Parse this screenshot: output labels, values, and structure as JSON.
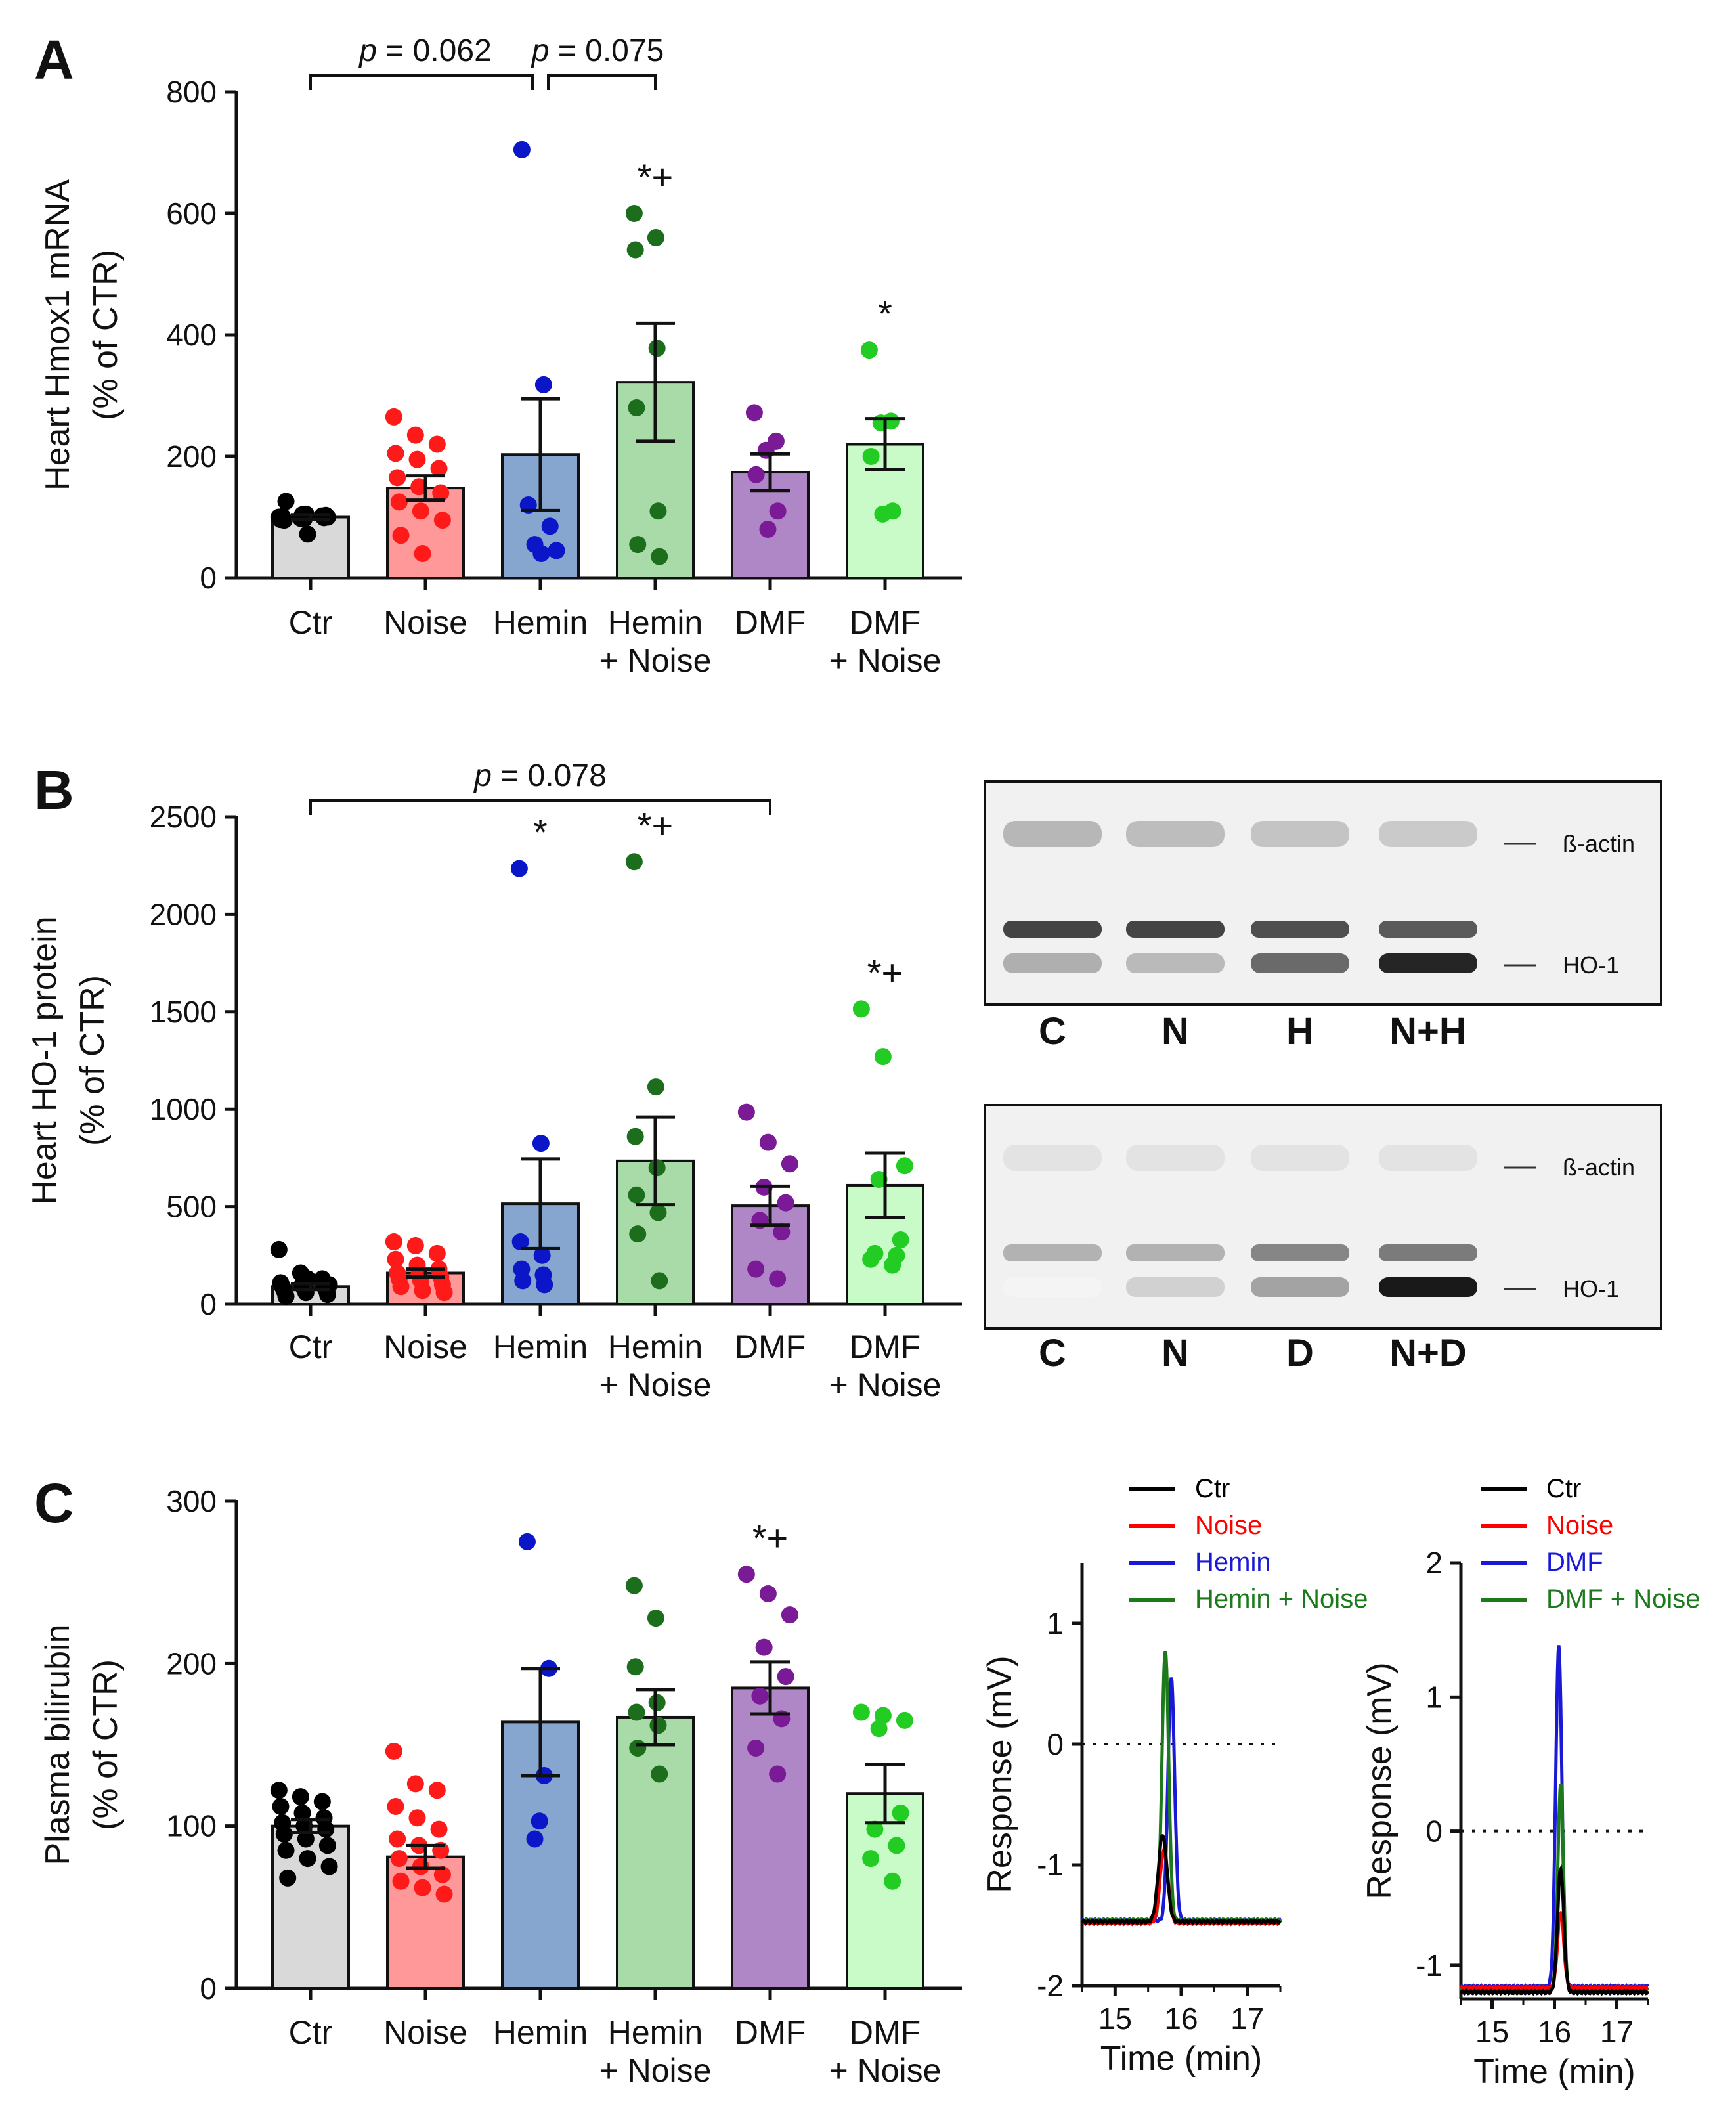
{
  "panels": {
    "a": "A",
    "b": "B",
    "c": "C"
  },
  "colors": {
    "ctr": "#000000",
    "noise": "#ff1a1a",
    "hemin": "#0a16c8",
    "hemin_noise": "#1c6e1c",
    "dmf": "#7a1a96",
    "dmf_noise": "#22cc22",
    "bar_ctr": "#d9d9d9",
    "bar_noise": "#ff9999",
    "bar_hemin": "#86a6cf",
    "bar_hemin_noise": "#a9dba9",
    "bar_dmf": "#b087c6",
    "bar_dmf_noise": "#c9fbc9"
  },
  "chart_data": [
    {
      "id": "A",
      "type": "bar",
      "ylabel_line1": "Heart Hmox1 mRNA",
      "ylabel_line2": "(% of CTR)",
      "ylim": [
        0,
        800
      ],
      "yticks": [
        "0",
        "200",
        "400",
        "600",
        "800"
      ],
      "categories": [
        [
          "Ctr"
        ],
        [
          "Noise"
        ],
        [
          "Hemin"
        ],
        [
          "Hemin",
          "+ Noise"
        ],
        [
          "DMF"
        ],
        [
          "DMF",
          "+ Noise"
        ]
      ],
      "means": [
        100,
        148,
        203,
        322,
        174,
        220
      ],
      "sems": [
        4,
        20,
        92,
        97,
        30,
        42
      ],
      "points": [
        [
          100,
          98,
          102,
          96,
          104,
          99,
          101,
          97,
          103,
          95,
          105,
          100,
          126,
          72
        ],
        [
          265,
          235,
          220,
          205,
          195,
          180,
          165,
          150,
          140,
          125,
          110,
          95,
          70,
          40
        ],
        [
          705,
          318,
          120,
          85,
          55,
          45,
          40
        ],
        [
          600,
          560,
          540,
          378,
          280,
          110,
          55,
          35
        ],
        [
          272,
          225,
          210,
          170,
          110,
          80
        ],
        [
          375,
          258,
          255,
          200,
          110,
          105
        ]
      ],
      "significance": [
        "",
        "",
        "",
        "*+",
        "",
        "*"
      ],
      "comparisons": [
        {
          "label_p": "p",
          "label_rest": " = 0.062",
          "from": 0,
          "to": 2
        },
        {
          "label_p": "p",
          "label_rest": " = 0.075",
          "from": 2,
          "to": 3
        }
      ]
    },
    {
      "id": "B",
      "type": "bar",
      "ylabel_line1": "Heart HO-1 protein",
      "ylabel_line2": "(% of CTR)",
      "ylim": [
        0,
        2500
      ],
      "yticks": [
        "0",
        "500",
        "1000",
        "1500",
        "2000",
        "2500"
      ],
      "categories": [
        [
          "Ctr"
        ],
        [
          "Noise"
        ],
        [
          "Hemin"
        ],
        [
          "Hemin",
          "+ Noise"
        ],
        [
          "DMF"
        ],
        [
          "DMF",
          "+ Noise"
        ]
      ],
      "means": [
        90,
        160,
        515,
        735,
        505,
        610
      ],
      "sems": [
        15,
        20,
        230,
        225,
        100,
        165
      ],
      "points": [
        [
          280,
          160,
          130,
          110,
          100,
          95,
          90,
          80,
          75,
          70,
          60,
          50,
          40,
          130,
          100
        ],
        [
          320,
          300,
          260,
          230,
          200,
          180,
          160,
          150,
          140,
          130,
          120,
          100,
          90,
          70,
          60
        ],
        [
          2235,
          825,
          320,
          250,
          180,
          150,
          120,
          100
        ],
        [
          2270,
          1115,
          860,
          700,
          560,
          470,
          360,
          120
        ],
        [
          985,
          830,
          720,
          600,
          520,
          430,
          370,
          180,
          130
        ],
        [
          1515,
          1270,
          710,
          640,
          330,
          260,
          250,
          230,
          200
        ]
      ],
      "significance": [
        "",
        "",
        "*",
        "*+",
        "",
        "*+"
      ],
      "comparisons": [
        {
          "label_p": "p",
          "label_rest": " = 0.078",
          "from": 0,
          "to": 4
        }
      ]
    },
    {
      "id": "C",
      "type": "bar",
      "ylabel_line1": "Plasma bilirubin",
      "ylabel_line2": "(% of CTR)",
      "ylim": [
        0,
        300
      ],
      "yticks": [
        "0",
        "100",
        "200",
        "300"
      ],
      "categories": [
        [
          "Ctr"
        ],
        [
          "Noise"
        ],
        [
          "Hemin"
        ],
        [
          "Hemin",
          "+ Noise"
        ],
        [
          "DMF"
        ],
        [
          "DMF",
          "+ Noise"
        ]
      ],
      "means": [
        100,
        81,
        164,
        167,
        185,
        120
      ],
      "sems": [
        4,
        7,
        33,
        17,
        16,
        18
      ],
      "points": [
        [
          122,
          118,
          115,
          112,
          108,
          105,
          102,
          100,
          98,
          95,
          92,
          88,
          85,
          80,
          75,
          68
        ],
        [
          146,
          126,
          122,
          112,
          105,
          98,
          92,
          88,
          85,
          80,
          75,
          70,
          66,
          62,
          58
        ],
        [
          275,
          197,
          131,
          103,
          92
        ],
        [
          248,
          228,
          198,
          176,
          170,
          162,
          148,
          132
        ],
        [
          255,
          243,
          230,
          210,
          192,
          180,
          166,
          148,
          132
        ],
        [
          170,
          168,
          165,
          160,
          108,
          98,
          88,
          80,
          66
        ]
      ],
      "significance": [
        "",
        "",
        "",
        "",
        "*+",
        ""
      ],
      "comparisons": []
    },
    {
      "id": "C-chrom-hemin",
      "type": "line",
      "xlabel": "Time (min)",
      "ylabel": "Response (mV)",
      "xlim": [
        14.5,
        17.5
      ],
      "ylim": [
        -2,
        1.5
      ],
      "xticks": [
        "15",
        "16",
        "17"
      ],
      "yticks": [
        "-2",
        "-1",
        "0",
        "1"
      ],
      "legend": [
        "Ctr",
        "Noise",
        "Hemin",
        "Hemin + Noise"
      ],
      "series": [
        {
          "name": "Ctr",
          "center": 15.72,
          "baseline": -1.47,
          "peak": -0.75,
          "width": 0.065
        },
        {
          "name": "Noise",
          "center": 15.74,
          "baseline": -1.48,
          "peak": -0.88,
          "width": 0.06
        },
        {
          "name": "Hemin",
          "center": 15.85,
          "baseline": -1.46,
          "peak": 0.55,
          "width": 0.05
        },
        {
          "name": "Hemin + Noise",
          "center": 15.76,
          "baseline": -1.46,
          "peak": 0.78,
          "width": 0.05
        }
      ]
    },
    {
      "id": "C-chrom-dmf",
      "type": "line",
      "xlabel": "Time (min)",
      "ylabel": "Response (mV)",
      "xlim": [
        14.5,
        17.5
      ],
      "ylim": [
        -1.25,
        2
      ],
      "xticks": [
        "15",
        "16",
        "17"
      ],
      "yticks": [
        "-1",
        "0",
        "1",
        "2"
      ],
      "legend": [
        "Ctr",
        "Noise",
        "DMF",
        "DMF + Noise"
      ],
      "series": [
        {
          "name": "Ctr",
          "center": 16.1,
          "baseline": -1.2,
          "peak": -0.28,
          "width": 0.05
        },
        {
          "name": "Noise",
          "center": 16.1,
          "baseline": -1.17,
          "peak": -0.6,
          "width": 0.05
        },
        {
          "name": "DMF",
          "center": 16.07,
          "baseline": -1.16,
          "peak": 1.38,
          "width": 0.05
        },
        {
          "name": "DMF + Noise",
          "center": 16.1,
          "baseline": -1.18,
          "peak": 0.35,
          "width": 0.045
        }
      ]
    }
  ],
  "blots": [
    {
      "id": "blot-hemin",
      "bands": [
        "ß-actin",
        "HO-1"
      ],
      "lanes": [
        "C",
        "N",
        "H",
        "N+H"
      ],
      "ho1_intensity": [
        0.35,
        0.3,
        0.65,
        0.95
      ],
      "upper_intensity": [
        0.85,
        0.85,
        0.8,
        0.75
      ],
      "actin_intensity": [
        0.55,
        0.5,
        0.45,
        0.4
      ]
    },
    {
      "id": "blot-dmf",
      "bands": [
        "ß-actin",
        "HO-1"
      ],
      "lanes": [
        "C",
        "N",
        "D",
        "N+D"
      ],
      "ho1_intensity": [
        0.05,
        0.2,
        0.4,
        1.0
      ],
      "upper_intensity": [
        0.35,
        0.35,
        0.55,
        0.6
      ],
      "actin_intensity": [
        0.2,
        0.2,
        0.2,
        0.2
      ]
    }
  ]
}
